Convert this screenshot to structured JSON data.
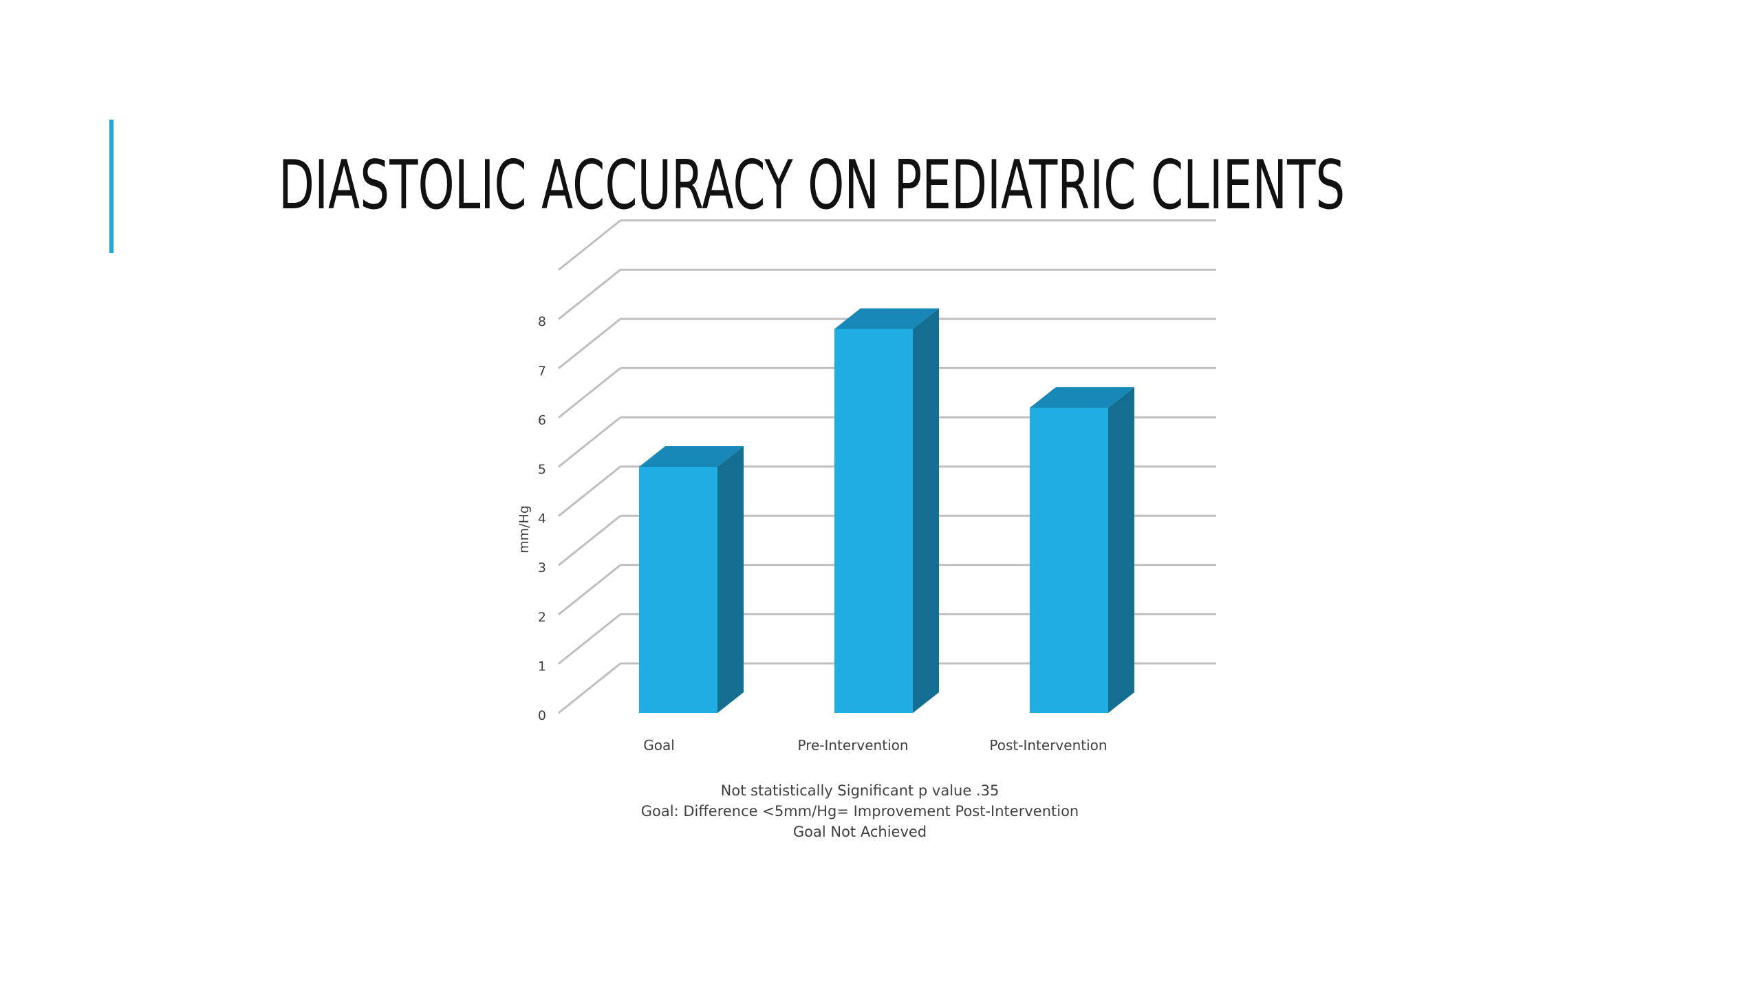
{
  "slide": {
    "title": "DIASTOLIC ACCURACY ON PEDIATRIC CLIENTS"
  },
  "colors": {
    "accent": "#1fa9d9",
    "bar_front": "#1fade3",
    "bar_side": "#136e91",
    "bar_top": "#1888b8",
    "gridline": "#bfbfbf"
  },
  "chart_data": {
    "type": "bar",
    "three_d": true,
    "categories": [
      "Goal",
      "Pre-Intervention",
      "Post-Intervention"
    ],
    "values": [
      5.0,
      7.8,
      6.2
    ],
    "xlabel": "",
    "ylabel": "mm/Hg",
    "ylim": [
      0,
      8
    ],
    "yticks": [
      "0",
      "1",
      "2",
      "3",
      "4",
      "5",
      "6",
      "7",
      "8"
    ],
    "grid": true,
    "legend": null,
    "notes": [
      "Not statistically Significant p value .35",
      "Goal: Difference <5mm/Hg= Improvement Post-Intervention",
      "Goal Not Achieved"
    ]
  }
}
